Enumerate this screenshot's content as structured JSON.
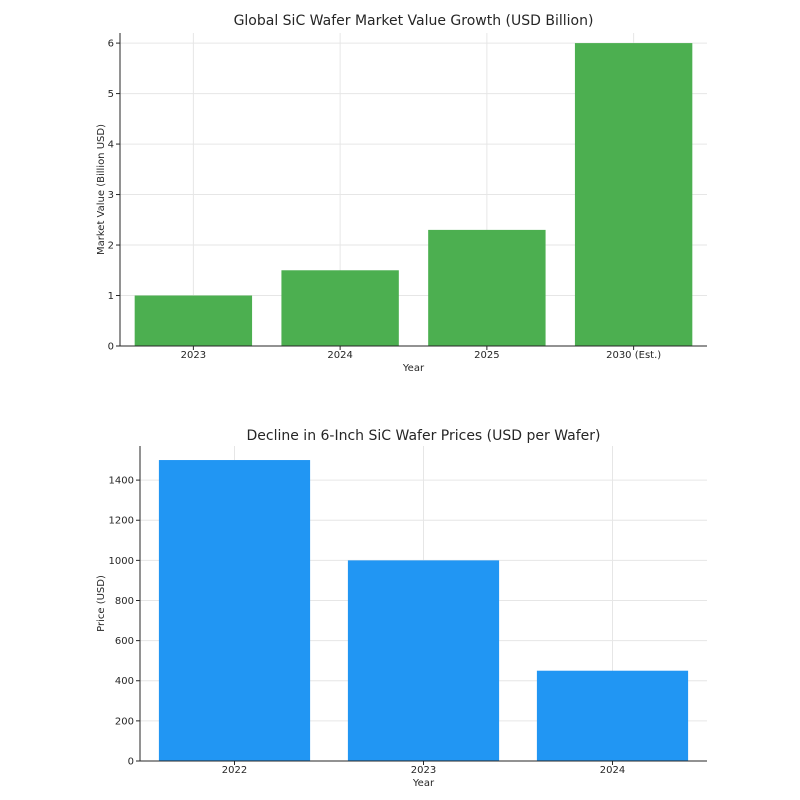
{
  "chart_data": [
    {
      "type": "bar",
      "title": "Global SiC Wafer Market Value Growth (USD Billion)",
      "xlabel": "Year",
      "ylabel": "Market Value (Billion USD)",
      "categories": [
        "2023",
        "2024",
        "2025",
        "2030 (Est.)"
      ],
      "values": [
        1.0,
        1.5,
        2.3,
        6.0
      ],
      "ylim": [
        0,
        6.2
      ],
      "yticks": [
        0,
        1,
        2,
        3,
        4,
        5,
        6
      ],
      "color": "#4caf50",
      "grid": true
    },
    {
      "type": "bar",
      "title": "Decline in 6-Inch SiC Wafer Prices (USD per Wafer)",
      "xlabel": "Year",
      "ylabel": "Price (USD)",
      "categories": [
        "2022",
        "2023",
        "2024"
      ],
      "values": [
        1500,
        1000,
        450
      ],
      "ylim": [
        0,
        1570
      ],
      "yticks": [
        0,
        200,
        400,
        600,
        800,
        1000,
        1200,
        1400
      ],
      "color": "#2196f3",
      "grid": true
    }
  ]
}
